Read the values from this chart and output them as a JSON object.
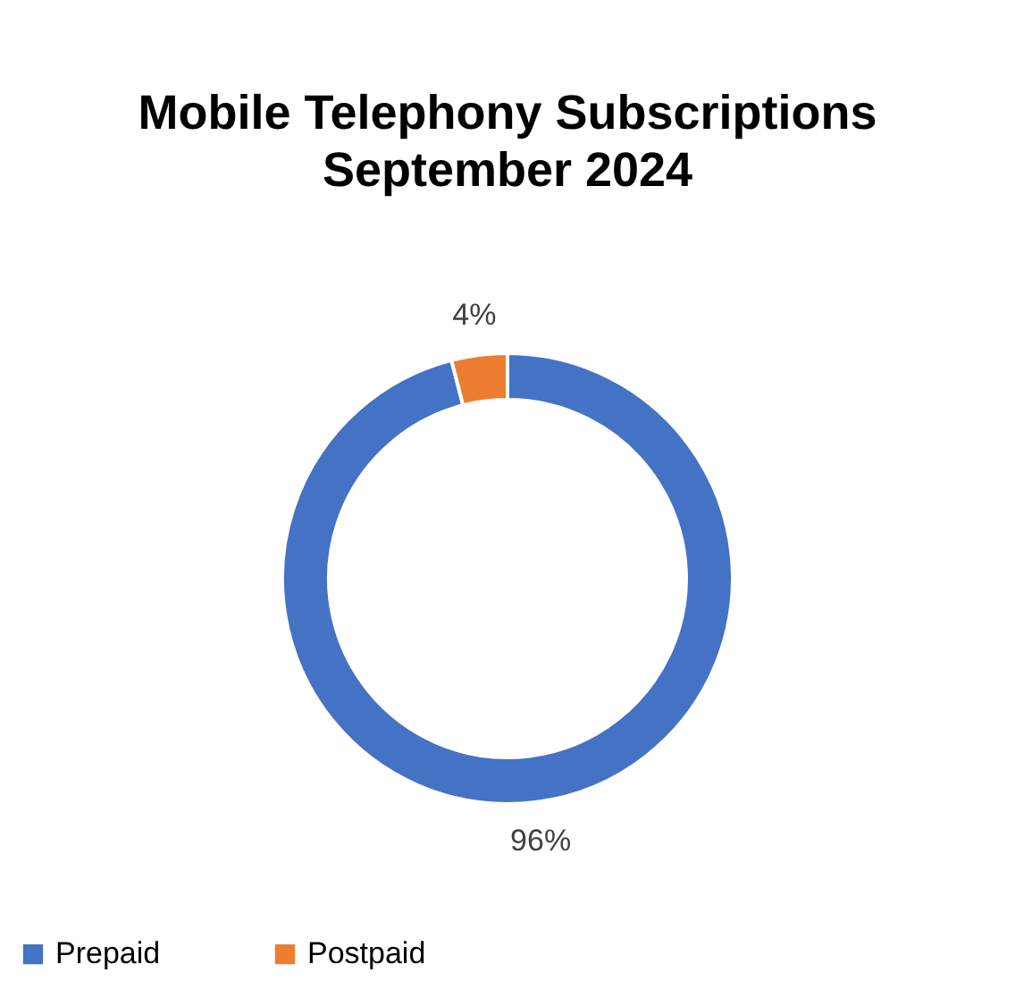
{
  "chart_data": {
    "type": "donut",
    "title": "Mobile Telephony Subscriptions\nSeptember 2024",
    "categories": [
      "Prepaid",
      "Postpaid"
    ],
    "values": [
      96,
      4
    ],
    "colors": [
      "#4472c4",
      "#ed7d31"
    ],
    "value_labels": [
      "96%",
      "4%"
    ],
    "legend": "bottom"
  }
}
